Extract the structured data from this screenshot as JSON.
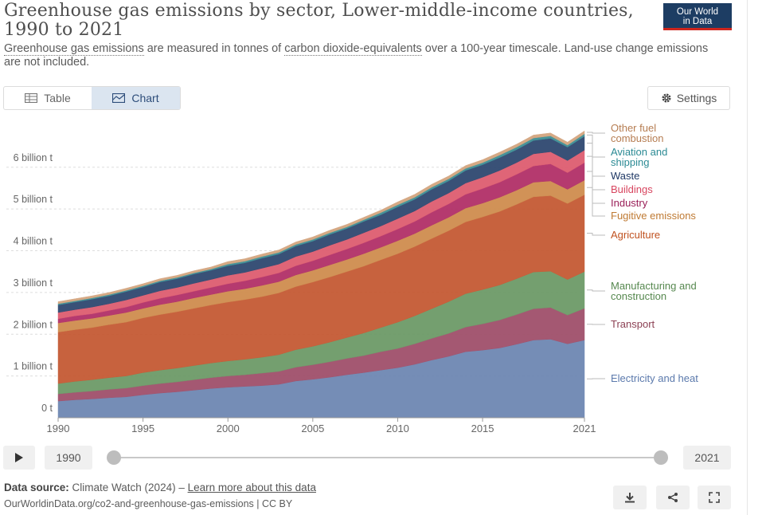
{
  "header": {
    "title": "Greenhouse gas emissions by sector, Lower-middle-income countries, 1990 to 2021",
    "subtitle_link1": "Greenhouse gas emissions",
    "subtitle_mid1": " are measured in tonnes of ",
    "subtitle_link2": "carbon dioxide-equivalents",
    "subtitle_mid2": " over a 100-year timescale. Land-use change emissions are not included.",
    "logo_line1": "Our World",
    "logo_line2": "in Data"
  },
  "tabs": {
    "table_label": "Table",
    "chart_label": "Chart"
  },
  "settings_label": "Settings",
  "timeline": {
    "start_label": "1990",
    "end_label": "2021"
  },
  "footer": {
    "source_prefix": "Data source:",
    "source_text": " Climate Watch (2024) – ",
    "source_link": "Learn more about this data",
    "url_text": "OurWorldinData.org/co2-and-greenhouse-gas-emissions | CC BY"
  },
  "chart_data": {
    "type": "area",
    "stacked": true,
    "x": [
      1990,
      1991,
      1992,
      1993,
      1994,
      1995,
      1996,
      1997,
      1998,
      1999,
      2000,
      2001,
      2002,
      2003,
      2004,
      2005,
      2006,
      2007,
      2008,
      2009,
      2010,
      2011,
      2012,
      2013,
      2014,
      2015,
      2016,
      2017,
      2018,
      2019,
      2020,
      2021
    ],
    "xticks": [
      "1990",
      "1995",
      "2000",
      "2005",
      "2010",
      "2015",
      "2021"
    ],
    "xtick_values": [
      1990,
      1995,
      2000,
      2005,
      2010,
      2015,
      2021
    ],
    "yticks": [
      "0 t",
      "1 billion t",
      "2 billion t",
      "3 billion t",
      "4 billion t",
      "5 billion t",
      "6 billion t"
    ],
    "ytick_values": [
      0,
      1,
      2,
      3,
      4,
      5,
      6
    ],
    "ylim": [
      0,
      6.95
    ],
    "grid": true,
    "legend_placement": "right",
    "series": [
      {
        "name": "Electricity and heat",
        "color": "#6e87b3",
        "label_color": "#5b79ac",
        "values": [
          0.4,
          0.43,
          0.45,
          0.48,
          0.5,
          0.55,
          0.59,
          0.62,
          0.66,
          0.7,
          0.73,
          0.75,
          0.77,
          0.8,
          0.88,
          0.92,
          0.97,
          1.03,
          1.08,
          1.14,
          1.2,
          1.28,
          1.38,
          1.47,
          1.58,
          1.62,
          1.67,
          1.76,
          1.86,
          1.88,
          1.77,
          1.86
        ]
      },
      {
        "name": "Transport",
        "color": "#a0506b",
        "label_color": "#8c4154",
        "values": [
          0.17,
          0.18,
          0.19,
          0.2,
          0.21,
          0.22,
          0.23,
          0.24,
          0.25,
          0.26,
          0.27,
          0.28,
          0.3,
          0.31,
          0.33,
          0.35,
          0.37,
          0.39,
          0.41,
          0.44,
          0.46,
          0.49,
          0.52,
          0.55,
          0.59,
          0.63,
          0.67,
          0.71,
          0.75,
          0.76,
          0.69,
          0.76
        ]
      },
      {
        "name": "Manufacturing and construction",
        "color": "#6d9a68",
        "label_color": "#56884f",
        "values": [
          0.25,
          0.26,
          0.27,
          0.28,
          0.29,
          0.31,
          0.32,
          0.33,
          0.34,
          0.35,
          0.36,
          0.37,
          0.38,
          0.4,
          0.42,
          0.44,
          0.47,
          0.5,
          0.54,
          0.58,
          0.63,
          0.67,
          0.71,
          0.76,
          0.8,
          0.82,
          0.84,
          0.86,
          0.88,
          0.87,
          0.85,
          0.88
        ]
      },
      {
        "name": "Agriculture",
        "color": "#c55a34",
        "label_color": "#c05220",
        "values": [
          1.23,
          1.24,
          1.25,
          1.27,
          1.29,
          1.31,
          1.33,
          1.35,
          1.37,
          1.39,
          1.41,
          1.43,
          1.45,
          1.48,
          1.51,
          1.54,
          1.56,
          1.58,
          1.6,
          1.62,
          1.64,
          1.66,
          1.68,
          1.7,
          1.72,
          1.74,
          1.76,
          1.78,
          1.8,
          1.81,
          1.82,
          1.84
        ]
      },
      {
        "name": "Fugitive emissions",
        "color": "#cf8d4f",
        "label_color": "#bf7a33",
        "values": [
          0.22,
          0.22,
          0.22,
          0.22,
          0.23,
          0.23,
          0.24,
          0.24,
          0.25,
          0.25,
          0.26,
          0.26,
          0.27,
          0.27,
          0.28,
          0.28,
          0.29,
          0.29,
          0.3,
          0.3,
          0.31,
          0.31,
          0.32,
          0.32,
          0.33,
          0.33,
          0.34,
          0.34,
          0.35,
          0.35,
          0.34,
          0.35
        ]
      },
      {
        "name": "Industry",
        "color": "#b23068",
        "label_color": "#9a1f58",
        "values": [
          0.1,
          0.11,
          0.11,
          0.12,
          0.13,
          0.14,
          0.15,
          0.16,
          0.16,
          0.17,
          0.18,
          0.19,
          0.2,
          0.21,
          0.22,
          0.23,
          0.24,
          0.25,
          0.26,
          0.27,
          0.28,
          0.29,
          0.31,
          0.32,
          0.33,
          0.35,
          0.36,
          0.38,
          0.39,
          0.41,
          0.4,
          0.42
        ]
      },
      {
        "name": "Buildings",
        "color": "#de5d70",
        "label_color": "#d8455f",
        "values": [
          0.15,
          0.15,
          0.16,
          0.16,
          0.17,
          0.17,
          0.18,
          0.18,
          0.19,
          0.19,
          0.2,
          0.2,
          0.21,
          0.21,
          0.22,
          0.22,
          0.23,
          0.23,
          0.24,
          0.24,
          0.25,
          0.25,
          0.26,
          0.26,
          0.27,
          0.27,
          0.28,
          0.28,
          0.29,
          0.29,
          0.29,
          0.3
        ]
      },
      {
        "name": "Waste",
        "color": "#2f4870",
        "label_color": "#1e3764",
        "values": [
          0.18,
          0.18,
          0.19,
          0.19,
          0.2,
          0.2,
          0.21,
          0.21,
          0.22,
          0.22,
          0.23,
          0.23,
          0.24,
          0.24,
          0.25,
          0.25,
          0.26,
          0.26,
          0.27,
          0.27,
          0.28,
          0.28,
          0.29,
          0.29,
          0.3,
          0.3,
          0.31,
          0.31,
          0.32,
          0.32,
          0.32,
          0.33
        ]
      },
      {
        "name": "Aviation and shipping",
        "color": "#3e8f95",
        "label_color": "#2b8a94",
        "values": [
          0.03,
          0.03,
          0.03,
          0.03,
          0.03,
          0.03,
          0.03,
          0.03,
          0.03,
          0.03,
          0.04,
          0.04,
          0.04,
          0.04,
          0.04,
          0.04,
          0.04,
          0.04,
          0.04,
          0.05,
          0.05,
          0.05,
          0.05,
          0.05,
          0.05,
          0.05,
          0.06,
          0.06,
          0.06,
          0.06,
          0.05,
          0.06
        ]
      },
      {
        "name": "Other fuel combustion",
        "color": "#d3a57f",
        "label_color": "#b67d52",
        "values": [
          0.05,
          0.05,
          0.05,
          0.05,
          0.05,
          0.05,
          0.05,
          0.05,
          0.05,
          0.05,
          0.06,
          0.06,
          0.06,
          0.06,
          0.06,
          0.06,
          0.06,
          0.06,
          0.06,
          0.06,
          0.07,
          0.07,
          0.07,
          0.07,
          0.07,
          0.07,
          0.07,
          0.07,
          0.07,
          0.07,
          0.07,
          0.07
        ]
      }
    ]
  }
}
